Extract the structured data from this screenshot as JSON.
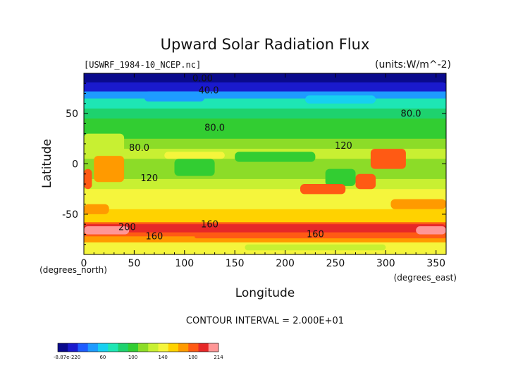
{
  "chart_data": {
    "type": "heatmap",
    "title": "Upward Solar Radiation Flux",
    "file_label": "[USWRF_1984-10_NCEP.nc]",
    "units_label": "(units:W/m^-2)",
    "xlabel": "Longitude",
    "ylabel": "Latitude",
    "x_unit_label": "(degrees_east)",
    "y_unit_label": "(degrees_north)",
    "xlim": [
      0,
      360
    ],
    "ylim": [
      -90,
      90
    ],
    "x_ticks": [
      0,
      50,
      100,
      150,
      200,
      250,
      300,
      350
    ],
    "y_ticks": [
      -50,
      0,
      50
    ],
    "contour_interval_text": "CONTOUR INTERVAL = 2.000E+01",
    "contour_labels": [
      {
        "text": "0.00",
        "lon": 118,
        "lat": 82
      },
      {
        "text": "40.0",
        "lon": 124,
        "lat": 70
      },
      {
        "text": "80.0",
        "lon": 130,
        "lat": 33
      },
      {
        "text": "80.0",
        "lon": 325,
        "lat": 47
      },
      {
        "text": "80.0",
        "lon": 55,
        "lat": 13
      },
      {
        "text": "120",
        "lon": 258,
        "lat": 15
      },
      {
        "text": "120",
        "lon": 65,
        "lat": -17
      },
      {
        "text": "160",
        "lon": 125,
        "lat": -63
      },
      {
        "text": "160",
        "lon": 230,
        "lat": -73
      },
      {
        "text": "160",
        "lon": 70,
        "lat": -75
      },
      {
        "text": "200",
        "lon": 43,
        "lat": -66
      }
    ],
    "colorbar": {
      "min_label": "-8.87e-220",
      "tick_labels": [
        "60",
        "100",
        "140",
        "180",
        "214"
      ],
      "ticks": [
        60,
        100,
        140,
        180,
        214
      ],
      "range": [
        0,
        214
      ],
      "colors": [
        "#0a0a8c",
        "#1a1acd",
        "#1e5cff",
        "#1e9bff",
        "#17d0f0",
        "#1ee6b4",
        "#1ed26e",
        "#32cd32",
        "#8cdc28",
        "#c8f032",
        "#f5f53c",
        "#ffd200",
        "#ff9a00",
        "#ff5a14",
        "#e62828",
        "#ff9696"
      ]
    },
    "zonal_mean": [
      {
        "lat": 90,
        "value": 5
      },
      {
        "lat": 80,
        "value": 10
      },
      {
        "lat": 72,
        "value": 35
      },
      {
        "lat": 65,
        "value": 65
      },
      {
        "lat": 55,
        "value": 85
      },
      {
        "lat": 45,
        "value": 95
      },
      {
        "lat": 35,
        "value": 100
      },
      {
        "lat": 25,
        "value": 110
      },
      {
        "lat": 15,
        "value": 125
      },
      {
        "lat": 5,
        "value": 118
      },
      {
        "lat": -5,
        "value": 112
      },
      {
        "lat": -15,
        "value": 122
      },
      {
        "lat": -25,
        "value": 132
      },
      {
        "lat": -35,
        "value": 140
      },
      {
        "lat": -45,
        "value": 145
      },
      {
        "lat": -52,
        "value": 150
      },
      {
        "lat": -58,
        "value": 170
      },
      {
        "lat": -63,
        "value": 200
      },
      {
        "lat": -67,
        "value": 175
      },
      {
        "lat": -72,
        "value": 190
      },
      {
        "lat": -78,
        "value": 150
      },
      {
        "lat": -84,
        "value": 140
      },
      {
        "lat": -90,
        "value": 140
      }
    ],
    "features": [
      {
        "lon0": 0,
        "lon1": 360,
        "lat0": 81,
        "lat1": 90,
        "value": 5
      },
      {
        "lon0": 0,
        "lon1": 360,
        "lat0": 74,
        "lat1": 81,
        "value": 15
      },
      {
        "lon0": 60,
        "lon1": 120,
        "lat0": 62,
        "lat1": 72,
        "value": 45
      },
      {
        "lon0": 220,
        "lon1": 290,
        "lat0": 60,
        "lat1": 68,
        "value": 55
      },
      {
        "lon0": 0,
        "lon1": 40,
        "lat0": 8,
        "lat1": 30,
        "value": 130
      },
      {
        "lon0": 10,
        "lon1": 40,
        "lat0": -18,
        "lat1": 8,
        "value": 172
      },
      {
        "lon0": 0,
        "lon1": 8,
        "lat0": -25,
        "lat1": -5,
        "value": 182
      },
      {
        "lon0": 80,
        "lon1": 140,
        "lat0": 5,
        "lat1": 12,
        "value": 140
      },
      {
        "lon0": 90,
        "lon1": 130,
        "lat0": -12,
        "lat1": 5,
        "value": 95
      },
      {
        "lon0": 150,
        "lon1": 230,
        "lat0": 2,
        "lat1": 12,
        "value": 100
      },
      {
        "lon0": 240,
        "lon1": 270,
        "lat0": -22,
        "lat1": -5,
        "value": 100
      },
      {
        "lon0": 285,
        "lon1": 320,
        "lat0": -5,
        "lat1": 15,
        "value": 182
      },
      {
        "lon0": 270,
        "lon1": 290,
        "lat0": -25,
        "lat1": -10,
        "value": 178
      },
      {
        "lon0": 215,
        "lon1": 260,
        "lat0": -30,
        "lat1": -20,
        "value": 185
      },
      {
        "lon0": 305,
        "lon1": 360,
        "lat0": -45,
        "lat1": -35,
        "value": 170
      },
      {
        "lon0": 0,
        "lon1": 25,
        "lat0": -50,
        "lat1": -40,
        "value": 168
      },
      {
        "lon0": 0,
        "lon1": 360,
        "lat0": -68,
        "lat1": -60,
        "value": 200
      },
      {
        "lon0": 0,
        "lon1": 45,
        "lat0": -70,
        "lat1": -62,
        "value": 214
      },
      {
        "lon0": 330,
        "lon1": 360,
        "lat0": -70,
        "lat1": -62,
        "value": 212
      },
      {
        "lon0": 110,
        "lon1": 360,
        "lat0": -74,
        "lat1": -70,
        "value": 185
      },
      {
        "lon0": 160,
        "lon1": 300,
        "lat0": -86,
        "lat1": -80,
        "value": 130
      }
    ]
  }
}
